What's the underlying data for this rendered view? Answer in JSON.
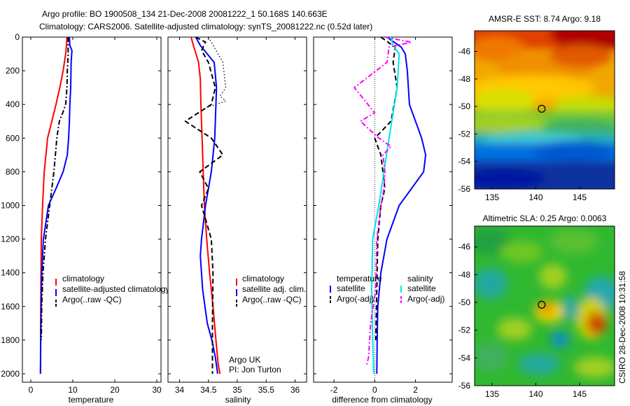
{
  "header": {
    "title_line1": "Argo profile: BO 1900508_134 21-Dec-2008 20081222_1 50.168S 140.663E",
    "title_line2": "Climatology: CARS2006. Satellite-adjusted climatology: synTS_20081222.nc (0.52d later)"
  },
  "credit": {
    "line1": "Argo UK",
    "line2": "PI: Jon Turton"
  },
  "stamp": "CSIRO 28-Dec-2008 10:31:58",
  "colors": {
    "red": "#ff0000",
    "blue": "#0000ff",
    "black": "#000000",
    "cyan": "#00e5e5",
    "magenta": "#ff00ff"
  },
  "chart_data": [
    {
      "type": "line",
      "xlabel": "temperature",
      "xlim": [
        -2,
        31
      ],
      "xticks": [
        0,
        10,
        20,
        30
      ],
      "ylim": [
        2050,
        0
      ],
      "yticks": [
        0,
        200,
        400,
        600,
        800,
        1000,
        1200,
        1400,
        1600,
        1800,
        2000
      ],
      "legend": [
        "climatology",
        "satellite-adjusted climatology",
        "Argo(..raw -QC)"
      ],
      "legend_placement": "lower-right",
      "series": [
        {
          "name": "climatology",
          "color": "red",
          "style": "solid",
          "x": [
            8.6,
            8.5,
            8.3,
            7.7,
            6.9,
            6.0,
            5.0,
            4.0,
            3.2,
            2.8,
            2.5,
            2.4,
            2.3
          ],
          "y": [
            0,
            50,
            100,
            200,
            300,
            400,
            500,
            600,
            800,
            1000,
            1200,
            1500,
            2000
          ]
        },
        {
          "name": "satellite-adjusted climatology",
          "color": "blue",
          "style": "solid",
          "x": [
            9.2,
            9.3,
            9.8,
            9.6,
            9.5,
            9.3,
            9.2,
            9.0,
            8.7,
            7.7,
            6.0,
            4.2,
            3.0,
            2.6,
            2.4,
            2.3
          ],
          "y": [
            0,
            50,
            80,
            150,
            300,
            400,
            500,
            600,
            700,
            800,
            900,
            1000,
            1200,
            1400,
            1700,
            2000
          ]
        },
        {
          "name": "Argo(..raw -QC)",
          "color": "black",
          "style": "dashdot",
          "x": [
            8.9,
            8.9,
            8.7,
            8.6,
            8.3,
            7.6,
            6.8,
            6.2,
            5.5,
            4.5,
            3.5,
            2.9,
            2.6,
            2.5
          ],
          "y": [
            0,
            100,
            200,
            300,
            400,
            450,
            500,
            600,
            800,
            1000,
            1200,
            1400,
            1600,
            1800
          ]
        }
      ]
    },
    {
      "type": "line",
      "xlabel": "salinity",
      "xlim": [
        33.8,
        36.2
      ],
      "xticks": [
        34,
        34.5,
        35,
        35.5,
        36
      ],
      "ylim": [
        2050,
        0
      ],
      "legend": [
        "climatology",
        "satellite adj. clim.",
        "Argo(..raw -QC)"
      ],
      "legend_placement": "lower-right",
      "series": [
        {
          "name": "climatology",
          "color": "red",
          "style": "solid",
          "x": [
            34.2,
            34.24,
            34.33,
            34.36,
            34.37,
            34.39,
            34.41,
            34.43,
            34.47,
            34.52,
            34.58,
            34.63,
            34.67,
            34.7
          ],
          "y": [
            0,
            50,
            150,
            250,
            400,
            600,
            800,
            1000,
            1200,
            1400,
            1600,
            1800,
            1950,
            2000
          ]
        },
        {
          "name": "satellite adj. clim.",
          "color": "blue",
          "style": "solid",
          "x": [
            34.28,
            34.36,
            34.6,
            34.64,
            34.61,
            34.55,
            34.45,
            34.38,
            34.36,
            34.4,
            34.48,
            34.56,
            34.62,
            34.66
          ],
          "y": [
            0,
            50,
            150,
            300,
            600,
            800,
            1000,
            1200,
            1300,
            1500,
            1700,
            1800,
            1900,
            2000
          ]
        },
        {
          "name": "Argo(..raw -QC)",
          "color": "black",
          "style": "dashed",
          "x": [
            34.28,
            34.45,
            34.38,
            34.5,
            34.62,
            34.55,
            34.1,
            34.55,
            34.75,
            34.35,
            34.5,
            34.38,
            34.55,
            34.58,
            34.57,
            34.57
          ],
          "y": [
            0,
            30,
            80,
            150,
            300,
            400,
            500,
            600,
            700,
            800,
            900,
            1000,
            1200,
            1400,
            1700,
            2000
          ]
        },
        {
          "name": "Argo raw",
          "color": "black",
          "style": "dotted",
          "x": [
            34.5,
            34.6,
            34.75,
            34.8,
            34.7,
            34.8,
            34.45
          ],
          "y": [
            0,
            60,
            150,
            300,
            350,
            380,
            420
          ]
        }
      ]
    },
    {
      "type": "line",
      "xlabel": "difference from climatology",
      "xlim": [
        -3,
        3.8
      ],
      "xticks": [
        -2,
        0,
        2
      ],
      "ylim": [
        2050,
        0
      ],
      "zero_line": true,
      "legend": [
        "temperature",
        "satellite",
        "Argo(-adj)",
        "salinity",
        "satellite",
        "Argo(-adj)"
      ],
      "legend_placement": "lower",
      "series": [
        {
          "name": "temperature satellite",
          "color": "blue",
          "style": "solid",
          "x": [
            0.6,
            1.3,
            1.5,
            1.6,
            1.7,
            2.3,
            2.5,
            2.4,
            1.8,
            1.2,
            0.6,
            0.3,
            0.15,
            0.12,
            0.1
          ],
          "y": [
            0,
            60,
            100,
            200,
            400,
            600,
            700,
            800,
            900,
            1000,
            1200,
            1400,
            1600,
            1800,
            2000
          ]
        },
        {
          "name": "temperature Argo(-adj)",
          "color": "black",
          "style": "dashed",
          "x": [
            0.3,
            1.0,
            0.9,
            1.1,
            0.8,
            0.4,
            0.0,
            0.3,
            0.4,
            0.5,
            0.3,
            0.15,
            0.1,
            0.05
          ],
          "y": [
            0,
            60,
            150,
            300,
            500,
            550,
            600,
            700,
            800,
            900,
            1000,
            1200,
            1500,
            1800
          ]
        },
        {
          "name": "salinity satellite",
          "color": "cyan",
          "style": "solid",
          "x": [
            0.8,
            0.9,
            1.2,
            1.1,
            0.9,
            0.7,
            0.45,
            0.2,
            -0.1,
            -0.15,
            -0.1,
            -0.05
          ],
          "y": [
            0,
            50,
            100,
            300,
            450,
            600,
            800,
            1000,
            1200,
            1500,
            1800,
            2000
          ]
        },
        {
          "name": "salinity Argo(-adj)",
          "color": "magenta",
          "style": "dashdot",
          "x": [
            0.5,
            1.8,
            0.7,
            0.6,
            -1.0,
            0.0,
            -0.7,
            0.2,
            0.8,
            0.4,
            0.5,
            0.45,
            0.3,
            0.1,
            0.05,
            -0.2,
            -0.3,
            -0.4
          ],
          "y": [
            0,
            30,
            60,
            150,
            300,
            450,
            500,
            600,
            650,
            700,
            800,
            900,
            1000,
            1200,
            1500,
            1700,
            1900,
            1950
          ]
        }
      ]
    },
    {
      "type": "heatmap",
      "title": "AMSR-E SST: 8.74 Argo: 9.18",
      "xlim": [
        133,
        149
      ],
      "ylim": [
        -56,
        -44.5
      ],
      "xticks": [
        135,
        140,
        145
      ],
      "yticks": [
        -46,
        -48,
        -50,
        -52,
        -54,
        -56
      ],
      "marker": {
        "x": 140.663,
        "y": -50.168
      }
    },
    {
      "type": "heatmap",
      "title": "Altimetric SLA: 0.25 Argo: 0.0063",
      "xlim": [
        133,
        149
      ],
      "ylim": [
        -56,
        -44.5
      ],
      "xticks": [
        135,
        140,
        145
      ],
      "yticks": [
        -46,
        -48,
        -50,
        -52,
        -54,
        -56
      ],
      "marker": {
        "x": 140.663,
        "y": -50.168
      }
    }
  ]
}
